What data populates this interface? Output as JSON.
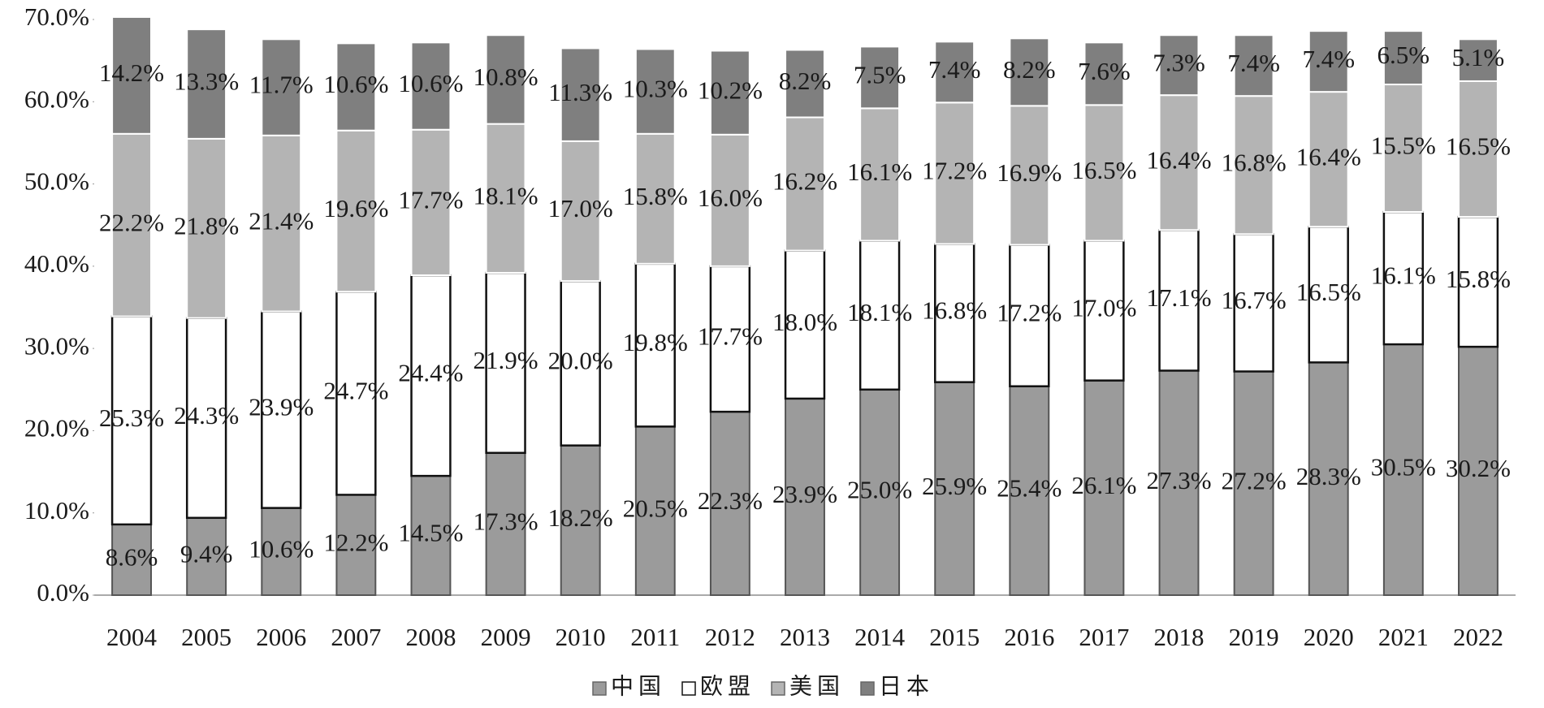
{
  "chart_data": {
    "type": "stacked_bar",
    "categories": [
      "2004",
      "2005",
      "2006",
      "2007",
      "2008",
      "2009",
      "2010",
      "2011",
      "2012",
      "2013",
      "2014",
      "2015",
      "2016",
      "2017",
      "2018",
      "2019",
      "2020",
      "2021",
      "2022"
    ],
    "series": [
      {
        "name": "中国",
        "color": "#9b9b9b",
        "values": [
          8.6,
          9.4,
          10.6,
          12.2,
          14.5,
          17.3,
          18.2,
          20.5,
          22.3,
          23.9,
          25.0,
          25.9,
          25.4,
          26.1,
          27.3,
          27.2,
          28.3,
          30.5,
          30.2
        ],
        "value_labels": [
          "8.6%",
          "9.4%",
          "10.6%",
          "12.2%",
          "14.5%",
          "17.3%",
          "18.2%",
          "20.5%",
          "22.3%",
          "23.9%",
          "25.0%",
          "25.9%",
          "25.4%",
          "26.1%",
          "27.3%",
          "27.2%",
          "28.3%",
          "30.5%",
          "30.2%"
        ]
      },
      {
        "name": "欧盟",
        "color": "#ffffff",
        "values": [
          25.3,
          24.3,
          23.9,
          24.7,
          24.4,
          21.9,
          20.0,
          19.8,
          17.7,
          18.0,
          18.1,
          16.8,
          17.2,
          17.0,
          17.1,
          16.7,
          16.5,
          16.1,
          15.8
        ],
        "value_labels": [
          "25.3%",
          "24.3%",
          "23.9%",
          "24.7%",
          "24.4%",
          "21.9%",
          "20.0%",
          "19.8%",
          "17.7%",
          "18.0%",
          "18.1%",
          "16.8%",
          "17.2%",
          "17.0%",
          "17.1%",
          "16.7%",
          "16.5%",
          "16.1%",
          "15.8%"
        ]
      },
      {
        "name": "美国",
        "color": "#b4b4b4",
        "values": [
          22.2,
          21.8,
          21.4,
          19.6,
          17.7,
          18.1,
          17.0,
          15.8,
          16.0,
          16.2,
          16.1,
          17.2,
          16.9,
          16.5,
          16.4,
          16.8,
          16.4,
          15.5,
          16.5
        ],
        "value_labels": [
          "22.2%",
          "21.8%",
          "21.4%",
          "19.6%",
          "17.7%",
          "18.1%",
          "17.0%",
          "15.8%",
          "16.0%",
          "16.2%",
          "16.1%",
          "17.2%",
          "16.9%",
          "16.5%",
          "16.4%",
          "16.8%",
          "16.4%",
          "15.5%",
          "16.5%"
        ]
      },
      {
        "name": "日本",
        "color": "#7f7f7f",
        "values": [
          14.2,
          13.3,
          11.7,
          10.6,
          10.6,
          10.8,
          11.3,
          10.3,
          10.2,
          8.2,
          7.5,
          7.4,
          8.2,
          7.6,
          7.3,
          7.4,
          7.4,
          6.5,
          5.1
        ],
        "value_labels": [
          "14.2%",
          "13.3%",
          "11.7%",
          "10.6%",
          "10.6%",
          "10.8%",
          "11.3%",
          "10.3%",
          "10.2%",
          "8.2%",
          "7.5%",
          "7.4%",
          "8.2%",
          "7.6%",
          "7.3%",
          "7.4%",
          "7.4%",
          "6.5%",
          "5.1%"
        ]
      }
    ],
    "ylim": [
      0,
      70
    ],
    "yticks": [
      {
        "value": 0,
        "label": "0.0%"
      },
      {
        "value": 10,
        "label": "10.0%"
      },
      {
        "value": 20,
        "label": "20.0%"
      },
      {
        "value": 30,
        "label": "30.0%"
      },
      {
        "value": 40,
        "label": "40.0%"
      },
      {
        "value": 50,
        "label": "50.0%"
      },
      {
        "value": 60,
        "label": "60.0%"
      },
      {
        "value": 70,
        "label": "70.0%"
      }
    ],
    "legend": "bottom"
  }
}
